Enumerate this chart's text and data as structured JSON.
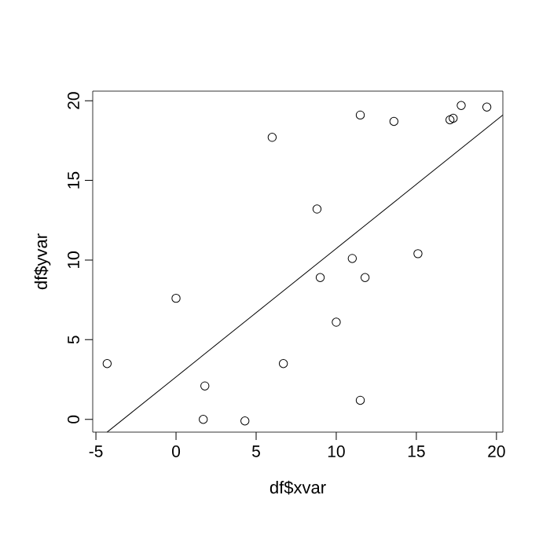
{
  "chart_data": {
    "type": "scatter",
    "xlabel": "df$xvar",
    "ylabel": "df$yvar",
    "xlim": [
      -5.2,
      20.4
    ],
    "ylim": [
      -0.8,
      20.6
    ],
    "xticks": [
      -5,
      0,
      5,
      10,
      15,
      20
    ],
    "yticks": [
      0,
      5,
      10,
      15,
      20
    ],
    "grid": false,
    "series": [
      {
        "marker": "circle",
        "color": "#000000",
        "x": [
          -4.3,
          0.0,
          1.8,
          1.7,
          4.3,
          6.0,
          6.7,
          8.8,
          9.0,
          10.0,
          11.0,
          11.5,
          11.5,
          11.8,
          13.6,
          15.1,
          17.1,
          17.3,
          17.8,
          19.4
        ],
        "values": [
          3.5,
          7.6,
          2.1,
          0.0,
          -0.1,
          17.7,
          3.5,
          13.2,
          8.9,
          6.1,
          10.1,
          19.1,
          1.2,
          8.9,
          18.7,
          10.4,
          18.8,
          18.9,
          19.7,
          19.6
        ]
      },
      {
        "type": "line",
        "color": "#000000",
        "line_style": "solid",
        "x": [
          -4.3,
          20.4
        ],
        "values": [
          -0.8,
          19.1
        ]
      }
    ]
  }
}
